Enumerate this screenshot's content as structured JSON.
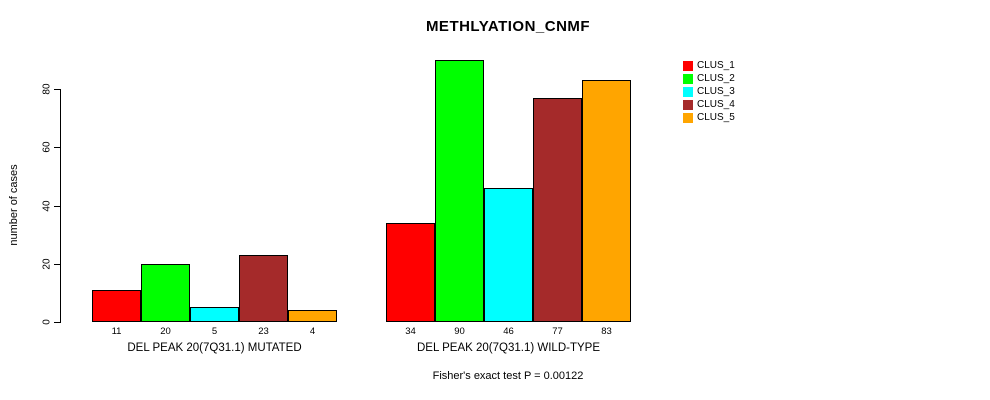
{
  "chart_data": {
    "type": "bar",
    "title": "METHLYATION_CNMF",
    "ylabel": "number of cases",
    "xlabel": "",
    "ylim": [
      0,
      90
    ],
    "yticks": [
      0,
      20,
      40,
      60,
      80
    ],
    "grid": false,
    "legend_position": "right-outside",
    "categories": [
      "DEL PEAK 20(7Q31.1) MUTATED",
      "DEL PEAK 20(7Q31.1) WILD-TYPE"
    ],
    "series": [
      {
        "name": "CLUS_1",
        "color": "#FF0000",
        "values": [
          11,
          34
        ]
      },
      {
        "name": "CLUS_2",
        "color": "#00FF00",
        "values": [
          20,
          90
        ]
      },
      {
        "name": "CLUS_3",
        "color": "#00FFFF",
        "values": [
          5,
          46
        ]
      },
      {
        "name": "CLUS_4",
        "color": "#A52A2A",
        "values": [
          23,
          77
        ]
      },
      {
        "name": "CLUS_5",
        "color": "#FFA500",
        "values": [
          4,
          83
        ]
      }
    ],
    "bar_value_labels": true,
    "annotation": "Fisher's exact test P = 0.00122"
  }
}
